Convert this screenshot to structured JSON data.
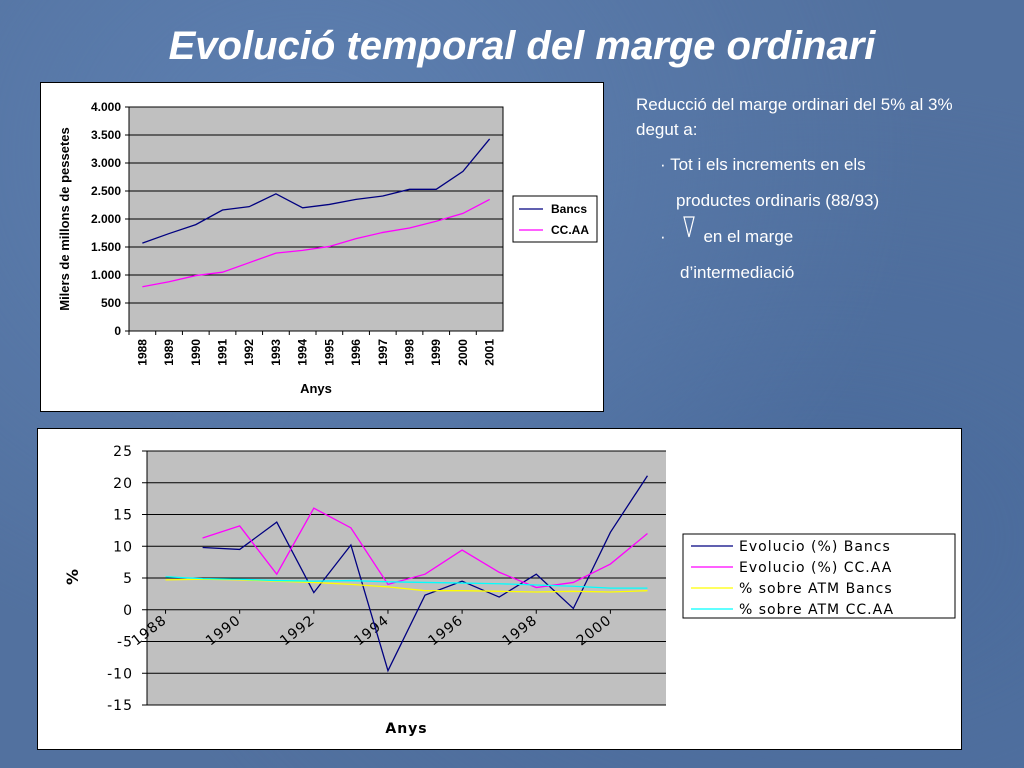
{
  "slide": {
    "title": "Evolució temporal del marge ordinari",
    "background_color": "#52719f"
  },
  "notes": {
    "intro": "Reducció del marge ordinari del 5% al 3% degut a:",
    "bullet_char": "·",
    "bullet1_line1": "Tot i els increments en els",
    "bullet1_line2": "productes ordinaris (88/93)",
    "bullet2_after_symbol": "en el marge",
    "bullet2_line2": "d’intermediació",
    "symbol_icon": "down-arrow-icon"
  },
  "chart_data": [
    {
      "type": "line",
      "categories": [
        "1988",
        "1989",
        "1990",
        "1991",
        "1992",
        "1993",
        "1994",
        "1995",
        "1996",
        "1997",
        "1998",
        "1999",
        "2000",
        "2001"
      ],
      "series": [
        {
          "name": "Bancs",
          "color": "#000080",
          "values": [
            1570,
            1740,
            1900,
            2160,
            2220,
            2450,
            2200,
            2260,
            2350,
            2410,
            2530,
            2530,
            2850,
            3430
          ]
        },
        {
          "name": "CC.AA",
          "color": "#ff00ff",
          "values": [
            790,
            880,
            990,
            1050,
            1220,
            1390,
            1440,
            1510,
            1650,
            1760,
            1840,
            1960,
            2100,
            2350
          ]
        }
      ],
      "ylabel": "Milers de millons de pessetes",
      "xlabel": "Anys",
      "ylim": [
        0,
        4000
      ],
      "yticks": [
        0,
        500,
        1000,
        1500,
        2000,
        2500,
        3000,
        3500,
        4000
      ],
      "ytick_labels": [
        "0",
        "500",
        "1.000",
        "1.500",
        "2.000",
        "2.500",
        "3.000",
        "3.500",
        "4.000"
      ],
      "grid": true,
      "plot_background": "#c0c0c0",
      "legend_position": "right"
    },
    {
      "type": "line",
      "x": [
        1988,
        1989,
        1990,
        1991,
        1992,
        1993,
        1994,
        1995,
        1996,
        1997,
        1998,
        1999,
        2000,
        2001
      ],
      "xtick_labels": [
        "1988",
        "1990",
        "1992",
        "1994",
        "1996",
        "1998",
        "2000"
      ],
      "xtick_values": [
        1988,
        1990,
        1992,
        1994,
        1996,
        1998,
        2000
      ],
      "series": [
        {
          "name": "Evolucio (%) Bancs",
          "color": "#000080",
          "values": [
            null,
            9.8,
            9.5,
            13.8,
            2.7,
            10.2,
            -9.6,
            2.3,
            4.5,
            2.0,
            5.6,
            0.2,
            12.2,
            21.1
          ]
        },
        {
          "name": "Evolucio (%) CC.AA",
          "color": "#ff00ff",
          "values": [
            null,
            11.3,
            13.2,
            5.6,
            16.0,
            12.9,
            4.0,
            5.6,
            9.4,
            5.9,
            3.5,
            4.3,
            7.2,
            12.0
          ]
        },
        {
          "name": "% sobre ATM Bancs",
          "color": "#ffff00",
          "values": [
            4.7,
            4.8,
            4.7,
            4.5,
            4.3,
            4.0,
            3.6,
            3.0,
            3.0,
            2.9,
            2.8,
            2.9,
            2.8,
            3.0
          ]
        },
        {
          "name": "% sobre ATM CC.AA",
          "color": "#00ffff",
          "values": [
            5.2,
            4.9,
            4.8,
            4.6,
            4.5,
            4.6,
            4.4,
            4.3,
            4.2,
            4.1,
            3.9,
            3.7,
            3.4,
            3.4
          ]
        }
      ],
      "ylabel": "%",
      "xlabel": "Anys",
      "ylim": [
        -15,
        25
      ],
      "yticks": [
        -15,
        -10,
        -5,
        0,
        5,
        10,
        15,
        20,
        25
      ],
      "ytick_labels": [
        "-15",
        "-10",
        "-5",
        "0",
        "5",
        "10",
        "15",
        "20",
        "25"
      ],
      "grid": true,
      "plot_background": "#c0c0c0",
      "legend_position": "right"
    }
  ]
}
